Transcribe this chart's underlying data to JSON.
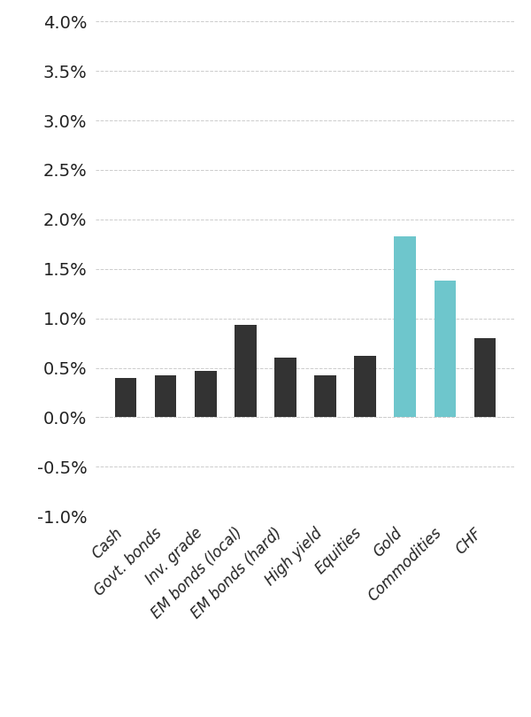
{
  "categories": [
    "Cash",
    "Govt. bonds",
    "Inv. grade",
    "EM bonds (local)",
    "EM bonds (hard)",
    "High yield",
    "Equities",
    "Gold",
    "Commodities",
    "CHF"
  ],
  "values": [
    0.004,
    0.0042,
    0.0047,
    0.0093,
    0.006,
    0.0042,
    0.0062,
    0.0183,
    0.0138,
    0.008
  ],
  "bar_colors": [
    "#333333",
    "#333333",
    "#333333",
    "#333333",
    "#333333",
    "#333333",
    "#333333",
    "#6ec6cc",
    "#6ec6cc",
    "#333333"
  ],
  "ylim": [
    -0.01,
    0.04
  ],
  "yticks": [
    -0.01,
    -0.005,
    0.0,
    0.005,
    0.01,
    0.015,
    0.02,
    0.025,
    0.03,
    0.035,
    0.04
  ],
  "ytick_labels": [
    "-1.0%",
    "-0.5%",
    "0.0%",
    "0.5%",
    "1.0%",
    "1.5%",
    "2.0%",
    "2.5%",
    "3.0%",
    "3.5%",
    "4.0%"
  ],
  "background_color": "#ffffff",
  "grid_color": "#cccccc",
  "bar_width": 0.55
}
